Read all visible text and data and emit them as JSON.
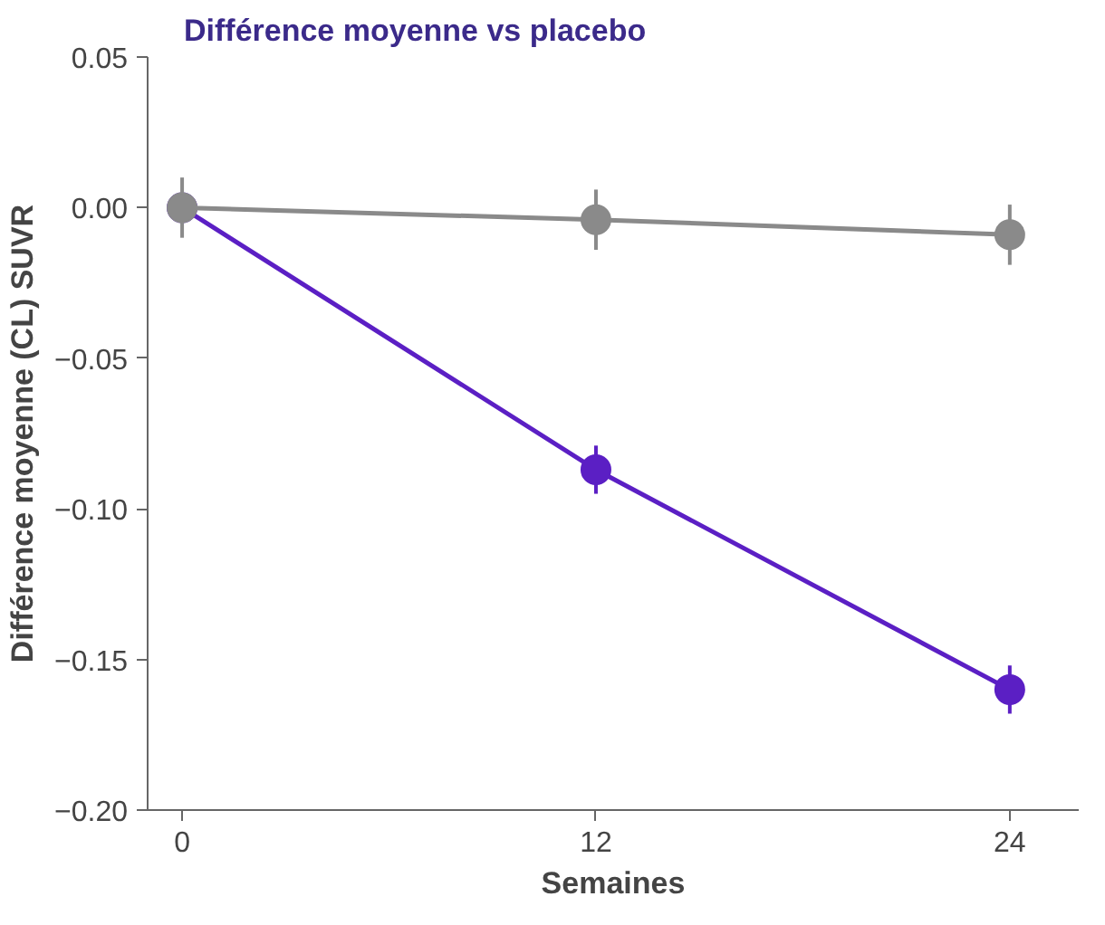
{
  "chart_data": {
    "type": "line",
    "title": "Différence moyenne vs placebo",
    "xlabel": "Semaines",
    "ylabel": "Différence moyenne (CL) SUVR",
    "x": [
      0,
      12,
      24
    ],
    "series": [
      {
        "color": "#5b1fc4",
        "values": [
          0.0,
          -0.087,
          -0.16
        ],
        "errors": [
          null,
          0.008,
          0.008
        ]
      },
      {
        "color": "#8a8a8a",
        "values": [
          0.0,
          -0.004,
          -0.009
        ],
        "errors": [
          0.01,
          0.01,
          0.01
        ]
      }
    ],
    "xlim": [
      -1,
      26
    ],
    "xticks": [
      0,
      12,
      24
    ],
    "ylim": [
      -0.2,
      0.05
    ],
    "yticks": [
      {
        "value": 0.05,
        "label": "0.05"
      },
      {
        "value": 0.0,
        "label": "0.00"
      },
      {
        "value": -0.05,
        "label": "−0.05"
      },
      {
        "value": -0.1,
        "label": "−0.10"
      },
      {
        "value": -0.15,
        "label": "−0.15"
      },
      {
        "value": -0.2,
        "label": "−0.20"
      }
    ],
    "grid": false,
    "marker": "circle",
    "line_style": "solid"
  }
}
